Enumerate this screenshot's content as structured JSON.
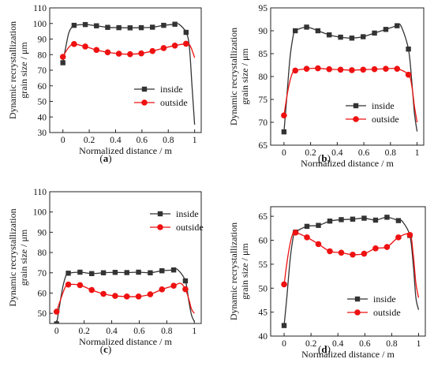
{
  "chart_data": [
    {
      "panel_label": "(a)",
      "type": "line",
      "xlabel": "Normalized distance / m",
      "ylabel": "Dynamic recrystallization grain size / μm",
      "ylabel_lines": [
        "Dynamic recrystallization",
        "grain size / μm"
      ],
      "xlim": [
        -0.1,
        1.05
      ],
      "ylim": [
        30,
        110
      ],
      "xticks": [
        0.0,
        0.2,
        0.4,
        0.6,
        0.8,
        1.0
      ],
      "yticks": [
        30,
        40,
        50,
        60,
        70,
        80,
        90,
        100,
        110
      ],
      "x": [
        0.0,
        0.085,
        0.17,
        0.255,
        0.34,
        0.425,
        0.51,
        0.595,
        0.68,
        0.765,
        0.85,
        0.935
      ],
      "series": [
        {
          "name": "inside",
          "color": "#333333",
          "marker": "square",
          "values": [
            74.8,
            98.8,
            99.3,
            98.5,
            97.5,
            97.3,
            97.2,
            97.3,
            97.6,
            98.8,
            99.5,
            94.3
          ],
          "curve_x": [
            0.0,
            0.02,
            0.045,
            0.07,
            0.085,
            0.17,
            0.255,
            0.34,
            0.425,
            0.51,
            0.595,
            0.68,
            0.765,
            0.85,
            0.88,
            0.935,
            0.96,
            0.98,
            1.0
          ],
          "curve_y": [
            74.8,
            84.0,
            94.0,
            98.0,
            98.8,
            99.3,
            98.5,
            97.5,
            97.3,
            97.2,
            97.3,
            97.6,
            98.8,
            99.5,
            99.6,
            94.3,
            85.0,
            60.0,
            35.0
          ]
        },
        {
          "name": "outside",
          "color": "#ee1111",
          "marker": "circle",
          "values": [
            78.6,
            86.8,
            85.2,
            83.0,
            81.5,
            80.6,
            80.3,
            80.8,
            82.3,
            84.2,
            85.8,
            87.0
          ],
          "curve_x": [
            0.0,
            0.03,
            0.06,
            0.085,
            0.17,
            0.255,
            0.34,
            0.425,
            0.51,
            0.595,
            0.68,
            0.765,
            0.85,
            0.935,
            0.96,
            0.98,
            1.0
          ],
          "curve_y": [
            78.6,
            83.0,
            86.0,
            86.8,
            85.2,
            83.0,
            81.5,
            80.6,
            80.3,
            80.8,
            82.3,
            84.2,
            85.8,
            87.0,
            86.5,
            83.0,
            78.0
          ]
        }
      ],
      "legend_position": "right"
    },
    {
      "panel_label": "(b)",
      "type": "line",
      "xlabel": "Normalized distance / m",
      "ylabel": "Dynamic recrystallization grain size / μm",
      "ylabel_lines": [
        "Dynamic recrystallization",
        "grain size / μm"
      ],
      "xlim": [
        -0.1,
        1.05
      ],
      "ylim": [
        65,
        95
      ],
      "xticks": [
        0.0,
        0.2,
        0.4,
        0.6,
        0.8,
        1.0
      ],
      "yticks": [
        65,
        70,
        75,
        80,
        85,
        90,
        95
      ],
      "x": [
        0.0,
        0.085,
        0.17,
        0.255,
        0.34,
        0.425,
        0.51,
        0.595,
        0.68,
        0.765,
        0.85,
        0.935
      ],
      "series": [
        {
          "name": "inside",
          "color": "#333333",
          "marker": "square",
          "values": [
            67.9,
            90.0,
            90.8,
            90.0,
            89.1,
            88.6,
            88.4,
            88.7,
            89.5,
            90.3,
            91.1,
            86.0
          ],
          "curve_x": [
            0.0,
            0.02,
            0.045,
            0.07,
            0.085,
            0.17,
            0.255,
            0.34,
            0.425,
            0.51,
            0.595,
            0.68,
            0.765,
            0.85,
            0.88,
            0.935,
            0.96,
            0.98,
            1.0
          ],
          "curve_y": [
            67.9,
            75.0,
            84.0,
            89.0,
            90.0,
            90.8,
            90.0,
            89.1,
            88.6,
            88.4,
            88.7,
            89.5,
            90.3,
            91.1,
            91.0,
            86.0,
            79.0,
            72.0,
            68.0
          ]
        },
        {
          "name": "outside",
          "color": "#ee1111",
          "marker": "circle",
          "values": [
            71.5,
            81.3,
            81.7,
            81.8,
            81.6,
            81.5,
            81.4,
            81.5,
            81.6,
            81.7,
            81.7,
            80.4
          ],
          "curve_x": [
            0.0,
            0.03,
            0.06,
            0.085,
            0.17,
            0.255,
            0.34,
            0.425,
            0.51,
            0.595,
            0.68,
            0.765,
            0.85,
            0.935,
            0.96,
            0.98,
            1.0
          ],
          "curve_y": [
            71.5,
            77.0,
            80.5,
            81.3,
            81.7,
            81.8,
            81.6,
            81.5,
            81.4,
            81.5,
            81.6,
            81.7,
            81.7,
            80.4,
            78.0,
            73.5,
            70.0
          ]
        }
      ],
      "legend_position": "right"
    },
    {
      "panel_label": "(c)",
      "type": "line",
      "xlabel": "Normalized distance / m",
      "ylabel": "Dynamic recrystallization grain size / μm",
      "ylabel_lines": [
        "Dynamic recrystallization",
        "grain size / μm"
      ],
      "xlim": [
        -0.05,
        1.05
      ],
      "ylim": [
        45,
        110
      ],
      "xticks": [
        0.0,
        0.2,
        0.4,
        0.6,
        0.8,
        1.0
      ],
      "yticks": [
        50,
        60,
        70,
        80,
        90,
        100,
        110
      ],
      "x": [
        0.0,
        0.085,
        0.17,
        0.255,
        0.34,
        0.425,
        0.51,
        0.595,
        0.68,
        0.765,
        0.85,
        0.935
      ],
      "series": [
        {
          "name": "inside",
          "color": "#333333",
          "marker": "square",
          "values": [
            44.8,
            69.8,
            70.3,
            69.6,
            70.0,
            70.2,
            70.1,
            70.3,
            70.0,
            71.0,
            71.4,
            66.0
          ],
          "curve_x": [
            0.0,
            0.02,
            0.045,
            0.07,
            0.085,
            0.17,
            0.255,
            0.34,
            0.425,
            0.51,
            0.595,
            0.68,
            0.765,
            0.85,
            0.88,
            0.935,
            0.96,
            0.98,
            1.0
          ],
          "curve_y": [
            44.8,
            53.0,
            63.0,
            69.0,
            69.8,
            70.3,
            69.6,
            70.0,
            70.2,
            70.1,
            70.3,
            70.0,
            71.0,
            71.4,
            71.5,
            66.0,
            56.0,
            49.0,
            46.0
          ]
        },
        {
          "name": "outside",
          "color": "#ee1111",
          "marker": "circle",
          "values": [
            50.8,
            64.2,
            63.9,
            61.5,
            59.6,
            58.6,
            58.3,
            58.3,
            59.4,
            61.8,
            63.6,
            61.9
          ],
          "curve_x": [
            0.0,
            0.03,
            0.06,
            0.085,
            0.17,
            0.255,
            0.34,
            0.425,
            0.51,
            0.595,
            0.68,
            0.765,
            0.85,
            0.9,
            0.935,
            0.96,
            0.98,
            1.0
          ],
          "curve_y": [
            50.8,
            57.0,
            62.5,
            64.2,
            63.9,
            61.5,
            59.6,
            58.6,
            58.3,
            58.3,
            59.4,
            61.8,
            63.6,
            64.8,
            61.9,
            57.0,
            52.0,
            50.0
          ]
        }
      ],
      "legend_position": "right"
    },
    {
      "panel_label": "(d)",
      "type": "line",
      "xlabel": "Normalized distance / m",
      "ylabel": "Dynamic recrystallization grain size / μm",
      "ylabel_lines": [
        "Dynamic recrystallization",
        "grain size / μm"
      ],
      "xlim": [
        -0.1,
        1.05
      ],
      "ylim": [
        40,
        67
      ],
      "xticks": [
        0.0,
        0.2,
        0.4,
        0.6,
        0.8,
        1.0
      ],
      "yticks": [
        40,
        45,
        50,
        55,
        60,
        65
      ],
      "x": [
        0.0,
        0.085,
        0.17,
        0.255,
        0.34,
        0.425,
        0.51,
        0.595,
        0.68,
        0.765,
        0.85,
        0.935
      ],
      "series": [
        {
          "name": "inside",
          "color": "#333333",
          "marker": "square",
          "values": [
            42.2,
            61.7,
            62.9,
            63.1,
            64.0,
            64.3,
            64.4,
            64.6,
            64.2,
            64.8,
            64.1,
            61.0
          ],
          "curve_x": [
            0.0,
            0.02,
            0.045,
            0.07,
            0.085,
            0.17,
            0.255,
            0.34,
            0.425,
            0.51,
            0.595,
            0.68,
            0.765,
            0.85,
            0.88,
            0.935,
            0.96,
            0.98,
            1.0
          ],
          "curve_y": [
            42.2,
            48.0,
            56.0,
            61.0,
            61.7,
            62.9,
            63.1,
            64.0,
            64.3,
            64.4,
            64.6,
            64.2,
            64.8,
            64.1,
            63.9,
            61.0,
            55.0,
            48.0,
            45.5
          ]
        },
        {
          "name": "outside",
          "color": "#ee1111",
          "marker": "circle",
          "values": [
            50.8,
            61.6,
            60.6,
            59.2,
            57.7,
            57.4,
            57.0,
            57.2,
            58.3,
            58.6,
            60.6,
            61.1
          ],
          "curve_x": [
            0.0,
            0.03,
            0.06,
            0.085,
            0.17,
            0.255,
            0.34,
            0.425,
            0.51,
            0.595,
            0.68,
            0.765,
            0.85,
            0.935,
            0.96,
            0.98,
            1.0
          ],
          "curve_y": [
            50.8,
            57.0,
            61.0,
            61.6,
            60.6,
            59.2,
            57.7,
            57.4,
            57.0,
            57.2,
            58.3,
            58.6,
            60.6,
            61.1,
            57.0,
            51.0,
            48.0
          ]
        }
      ],
      "legend_position": "bottom-right"
    }
  ]
}
